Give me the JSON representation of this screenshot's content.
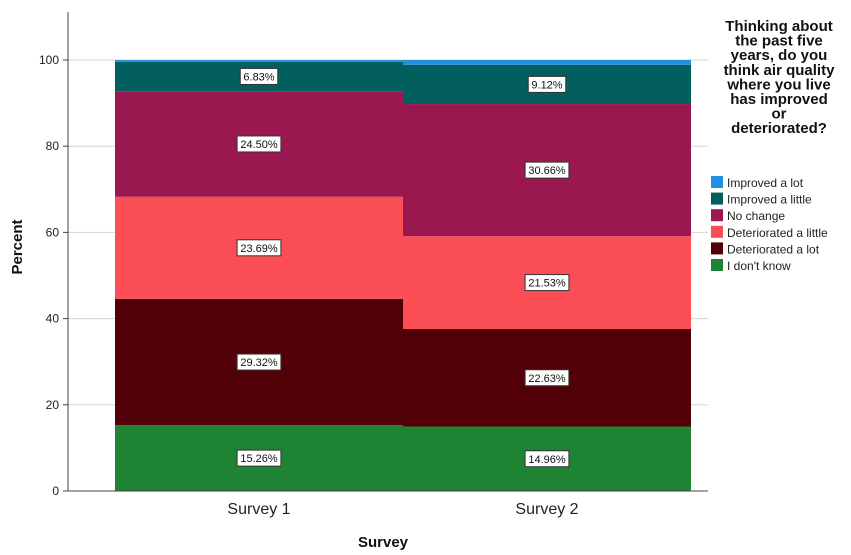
{
  "chart_data": {
    "type": "bar",
    "stacked": true,
    "categories": [
      "Survey 1",
      "Survey 2"
    ],
    "xlabel": "Survey",
    "ylabel": "Percent",
    "ylim": [
      0,
      100
    ],
    "yticks": [
      "0",
      "20",
      "40",
      "60",
      "80",
      "100"
    ],
    "grid": "horizontal",
    "legend_title_lines": [
      "Thinking about",
      "the past five",
      "years, do you",
      "think air quality",
      "where you live",
      "has improved",
      "or",
      "deteriorated?"
    ],
    "legend_placement": "right",
    "series": [
      {
        "name": "I don't know",
        "color": "#1e8434",
        "values": [
          15.26,
          14.96
        ],
        "labels": [
          "15.26%",
          "14.96%"
        ]
      },
      {
        "name": "Deteriorated a lot",
        "color": "#520008",
        "values": [
          29.32,
          22.63
        ],
        "labels": [
          "29.32%",
          "22.63%"
        ]
      },
      {
        "name": "Deteriorated a little",
        "color": "#fb4d55",
        "values": [
          23.69,
          21.53
        ],
        "labels": [
          "23.69%",
          "21.53%"
        ]
      },
      {
        "name": "No change",
        "color": "#9b1750",
        "values": [
          24.5,
          30.66
        ],
        "labels": [
          "24.50%",
          "30.66%"
        ]
      },
      {
        "name": "Improved a little",
        "color": "#035e5e",
        "values": [
          6.83,
          9.12
        ],
        "labels": [
          "6.83%",
          "9.12%"
        ]
      },
      {
        "name": "Improved a lot",
        "color": "#2190e0",
        "values": [
          0.4,
          1.1
        ],
        "labels": [
          "",
          ""
        ]
      }
    ],
    "legend_order": [
      "Improved a lot",
      "Improved a little",
      "No change",
      "Deteriorated a little",
      "Deteriorated a lot",
      "I don't know"
    ]
  }
}
